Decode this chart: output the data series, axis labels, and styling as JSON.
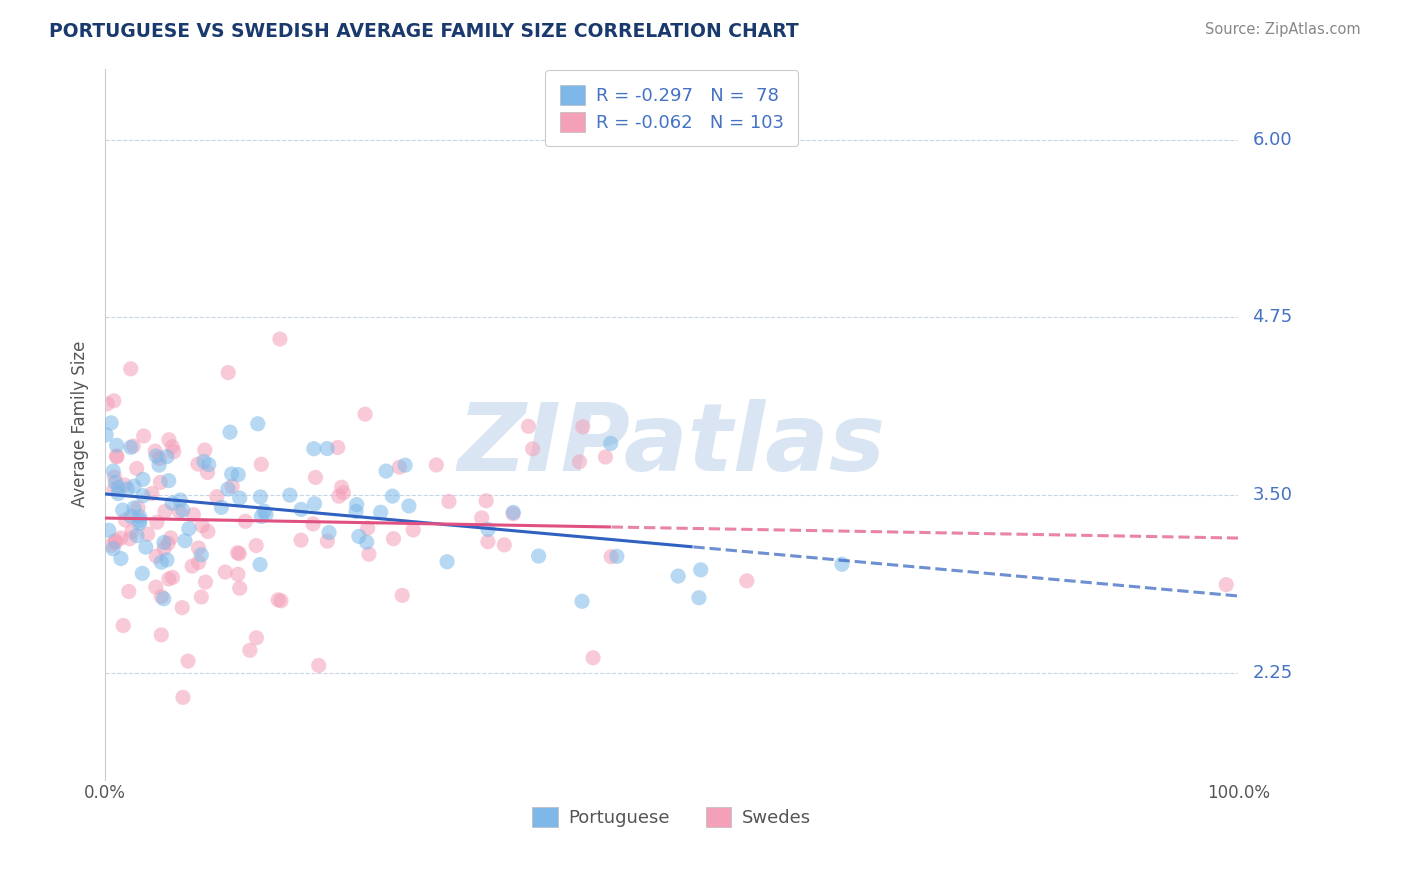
{
  "title": "PORTUGUESE VS SWEDISH AVERAGE FAMILY SIZE CORRELATION CHART",
  "source": "Source: ZipAtlas.com",
  "ylabel": "Average Family Size",
  "xlim": [
    0.0,
    1.0
  ],
  "ylim": [
    1.5,
    6.5
  ],
  "yticks": [
    2.25,
    3.5,
    4.75,
    6.0
  ],
  "xtick_positions": [
    0.0,
    1.0
  ],
  "xtick_labels": [
    "0.0%",
    "100.0%"
  ],
  "ytick_color": "#4472c4",
  "grid_color": "#c8d4e8",
  "bg_color": "#ffffff",
  "port_color": "#7db8e8",
  "swe_color": "#f4a0b8",
  "port_R": -0.297,
  "port_N": 78,
  "swe_R": -0.062,
  "swe_N": 103,
  "legend_port": "Portuguese",
  "legend_swe": "Swedes",
  "watermark_text": "ZIPatlas",
  "watermark_color": "#d0dff0",
  "title_color": "#1a3a6e",
  "source_color": "#888888",
  "trend_blue": "#3060c0",
  "trend_pink": "#e05080",
  "port_seed": 42,
  "swe_seed": 77,
  "marker_alpha": 0.55,
  "marker_size": 120
}
